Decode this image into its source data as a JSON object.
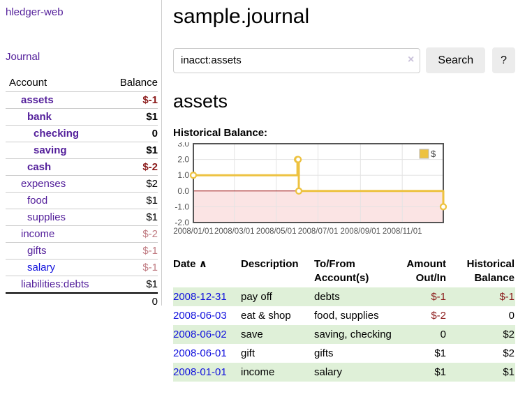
{
  "app": {
    "title": "hledger-web"
  },
  "sidebar": {
    "journal_link": "Journal",
    "accounts_header": {
      "account": "Account",
      "balance": "Balance"
    },
    "accounts": [
      {
        "name": "assets",
        "indent": 1,
        "bold": true,
        "balance": "$-1",
        "balance_style": "neg-strong",
        "link_color": "purple"
      },
      {
        "name": "bank",
        "indent": 2,
        "bold": true,
        "balance": "$1",
        "balance_style": "pos",
        "link_color": "purple"
      },
      {
        "name": "checking",
        "indent": 3,
        "bold": true,
        "balance": "0",
        "balance_style": "pos",
        "link_color": "purple"
      },
      {
        "name": "saving",
        "indent": 3,
        "bold": true,
        "balance": "$1",
        "balance_style": "pos",
        "link_color": "purple"
      },
      {
        "name": "cash",
        "indent": 2,
        "bold": true,
        "balance": "$-2",
        "balance_style": "neg-strong",
        "link_color": "purple"
      },
      {
        "name": "expenses",
        "indent": 1,
        "bold": false,
        "balance": "$2",
        "balance_style": "pos",
        "link_color": "purple"
      },
      {
        "name": "food",
        "indent": 2,
        "bold": false,
        "balance": "$1",
        "balance_style": "pos",
        "link_color": "purple"
      },
      {
        "name": "supplies",
        "indent": 2,
        "bold": false,
        "balance": "$1",
        "balance_style": "pos",
        "link_color": "purple"
      },
      {
        "name": "income",
        "indent": 1,
        "bold": false,
        "balance": "$-2",
        "balance_style": "neg-soft",
        "link_color": "purple"
      },
      {
        "name": "gifts",
        "indent": 2,
        "bold": false,
        "balance": "$-1",
        "balance_style": "neg-soft",
        "link_color": "purple"
      },
      {
        "name": "salary",
        "indent": 2,
        "bold": false,
        "balance": "$-1",
        "balance_style": "neg-soft",
        "link_color": "blue"
      },
      {
        "name": "liabilities:debts",
        "indent": 1,
        "bold": false,
        "balance": "$1",
        "balance_style": "pos",
        "link_color": "purple"
      }
    ],
    "total": "0"
  },
  "header": {
    "title": "sample.journal"
  },
  "search": {
    "value": "inacct:assets",
    "clear_icon": "×",
    "button_label": "Search",
    "help_label": "?"
  },
  "account_page": {
    "title": "assets",
    "chart_label": "Historical Balance:"
  },
  "chart_data": {
    "type": "line",
    "step": true,
    "title": "Historical Balance",
    "series": [
      {
        "name": "$",
        "color": "#edc240",
        "points": [
          [
            "2008-01-01",
            1
          ],
          [
            "2008-06-01",
            2
          ],
          [
            "2008-06-02",
            2
          ],
          [
            "2008-06-03",
            0
          ],
          [
            "2008-12-31",
            -1
          ]
        ]
      }
    ],
    "x_ticks": [
      "2008/01/01",
      "2008/03/01",
      "2008/05/01",
      "2008/07/01",
      "2008/09/01",
      "2008/11/01"
    ],
    "y_ticks": [
      3.0,
      2.0,
      1.0,
      0.0,
      -1.0,
      -2.0
    ],
    "ylim": [
      -2,
      3
    ],
    "xlim": [
      "2008-01-01",
      "2008-12-31"
    ],
    "legend": {
      "label": "$",
      "position": "top-right"
    },
    "negative_region_color": "#fbe4e4",
    "zero_line_color": "#9c0b0b",
    "grid": true
  },
  "register": {
    "columns": [
      "Date",
      "Description",
      "To/From Account(s)",
      "Amount Out/In",
      "Historical Balance"
    ],
    "sort_indicator": "∧",
    "rows": [
      {
        "date": "2008-12-31",
        "description": "pay off",
        "accounts": "debts",
        "amount": "$-1",
        "amount_neg": true,
        "balance": "$-1",
        "balance_neg": true
      },
      {
        "date": "2008-06-03",
        "description": "eat & shop",
        "accounts": "food, supplies",
        "amount": "$-2",
        "amount_neg": true,
        "balance": "0",
        "balance_neg": false
      },
      {
        "date": "2008-06-02",
        "description": "save",
        "accounts": "saving, checking",
        "amount": "0",
        "amount_neg": false,
        "balance": "$2",
        "balance_neg": false
      },
      {
        "date": "2008-06-01",
        "description": "gift",
        "accounts": "gifts",
        "amount": "$1",
        "amount_neg": false,
        "balance": "$2",
        "balance_neg": false
      },
      {
        "date": "2008-01-01",
        "description": "income",
        "accounts": "salary",
        "amount": "$1",
        "amount_neg": false,
        "balance": "$1",
        "balance_neg": false
      }
    ]
  },
  "colors": {
    "link_purple": "#54209b",
    "link_blue": "#1111dd",
    "negative_strong": "#8b1a1a",
    "negative_soft": "#c07b82",
    "row_stripe_green": "#dff0d8",
    "chart_line": "#edc240",
    "chart_border": "#545454",
    "chart_negative_region": "#fbe4e4",
    "chart_zero_line": "#9c0b0b",
    "button_gray": "#ececec"
  }
}
